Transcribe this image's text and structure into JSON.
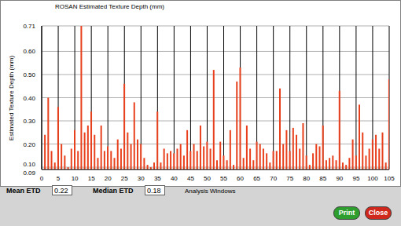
{
  "chart_data": {
    "type": "bar",
    "title": "ROSAN Estimated Texture Depth (mm)",
    "x_label": "Analysis Windows",
    "y_label": "Estimated Texture Depth (mm)",
    "x": [
      1,
      2,
      3,
      4,
      5,
      6,
      7,
      8,
      9,
      10,
      11,
      12,
      13,
      14,
      15,
      16,
      17,
      18,
      19,
      20,
      21,
      22,
      23,
      24,
      25,
      26,
      27,
      28,
      29,
      30,
      31,
      32,
      33,
      34,
      35,
      36,
      37,
      38,
      39,
      40,
      41,
      42,
      43,
      44,
      45,
      46,
      47,
      48,
      49,
      50,
      51,
      52,
      53,
      54,
      55,
      56,
      57,
      58,
      59,
      60,
      61,
      62,
      63,
      64,
      65,
      66,
      67,
      68,
      69,
      70,
      71,
      72,
      73,
      74,
      75,
      76,
      77,
      78,
      79,
      80,
      81,
      82,
      83,
      84,
      85,
      86,
      87,
      88,
      89,
      90,
      91,
      92,
      93,
      94,
      95,
      96,
      97,
      98,
      99,
      100,
      101,
      102,
      103,
      104,
      105
    ],
    "values": [
      0.24,
      0.4,
      0.17,
      0.12,
      0.36,
      0.2,
      0.15,
      0.1,
      0.18,
      0.26,
      0.17,
      0.71,
      0.25,
      0.28,
      0.34,
      0.24,
      0.14,
      0.28,
      0.17,
      0.19,
      0.17,
      0.14,
      0.22,
      0.18,
      0.46,
      0.25,
      0.2,
      0.38,
      0.22,
      0.2,
      0.14,
      0.11,
      0.1,
      0.12,
      0.34,
      0.12,
      0.18,
      0.16,
      0.17,
      0.16,
      0.18,
      0.2,
      0.15,
      0.26,
      0.17,
      0.2,
      0.17,
      0.28,
      0.19,
      0.21,
      0.18,
      0.52,
      0.13,
      0.21,
      0.15,
      0.13,
      0.26,
      0.11,
      0.47,
      0.53,
      0.14,
      0.28,
      0.18,
      0.13,
      0.21,
      0.2,
      0.18,
      0.16,
      0.12,
      0.17,
      0.17,
      0.44,
      0.2,
      0.26,
      0.17,
      0.27,
      0.24,
      0.18,
      0.29,
      0.15,
      0.11,
      0.16,
      0.2,
      0.19,
      0.28,
      0.13,
      0.14,
      0.15,
      0.13,
      0.43,
      0.12,
      0.11,
      0.14,
      0.22,
      0.15,
      0.37,
      0.25,
      0.15,
      0.18,
      0.22,
      0.24,
      0.18,
      0.25,
      0.12,
      0.48
    ],
    "color": "#e8401c",
    "xlim": [
      0,
      105
    ],
    "xticks": [
      0,
      5,
      10,
      15,
      20,
      25,
      30,
      35,
      40,
      45,
      50,
      55,
      60,
      65,
      70,
      75,
      80,
      85,
      90,
      95,
      100,
      105
    ],
    "ylim": [
      0.09,
      0.71
    ],
    "yticks": [
      0.09,
      {
        "value": 0.1,
        "label": "0.10"
      },
      {
        "value": 0.2,
        "label": "0.20"
      },
      {
        "value": 0.3,
        "label": "0.30"
      },
      {
        "value": 0.4,
        "label": "0.40"
      },
      {
        "value": 0.5,
        "label": "0.50"
      },
      {
        "value": 0.6,
        "label": "0.60"
      },
      0.71
    ],
    "grid": true
  },
  "panel": {
    "mean_label": "Mean ETD",
    "mean": 0.22,
    "median_label": "Median ETD",
    "median": 0.18,
    "buttons": [
      {
        "label": "Print",
        "color": "#2e9e2e"
      },
      {
        "label": "Close",
        "color": "#d0281c"
      }
    ]
  }
}
